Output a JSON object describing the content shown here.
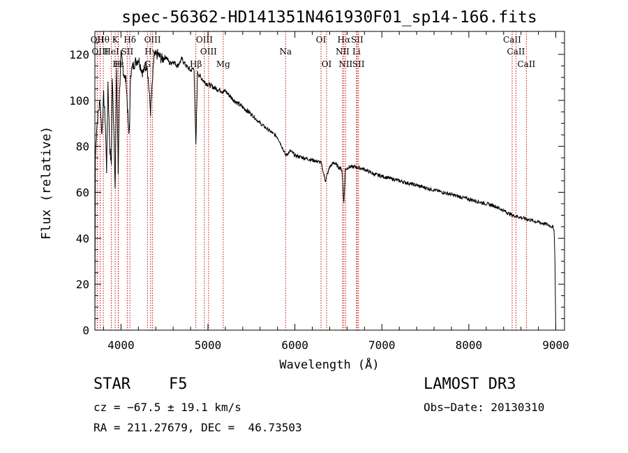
{
  "chart_data": {
    "type": "line",
    "title": "spec-56362-HD141351N461930F01_sp14-166.fits",
    "xlabel": "Wavelength (Å)",
    "ylabel": "Flux (relative)",
    "xlim": [
      3700,
      9100
    ],
    "ylim": [
      0,
      130
    ],
    "xticks": [
      4000,
      5000,
      6000,
      7000,
      8000,
      9000
    ],
    "yticks": [
      0,
      20,
      40,
      60,
      80,
      100,
      120
    ],
    "grid": false,
    "series": [
      {
        "name": "flux",
        "color": "#000000",
        "x": [
          3700,
          3705,
          3720,
          3740,
          3760,
          3780,
          3800,
          3820,
          3835,
          3850,
          3870,
          3889,
          3900,
          3920,
          3933,
          3950,
          3968,
          3980,
          4000,
          4030,
          4060,
          4090,
          4101,
          4110,
          4150,
          4200,
          4250,
          4300,
          4340,
          4380,
          4420,
          4470,
          4520,
          4560,
          4600,
          4650,
          4700,
          4750,
          4800,
          4840,
          4861,
          4880,
          4920,
          4960,
          5000,
          5050,
          5100,
          5167,
          5200,
          5250,
          5300,
          5400,
          5500,
          5600,
          5700,
          5800,
          5850,
          5893,
          5950,
          6000,
          6100,
          6200,
          6300,
          6350,
          6400,
          6450,
          6500,
          6540,
          6563,
          6580,
          6620,
          6700,
          6800,
          6900,
          7000,
          7100,
          7200,
          7300,
          7400,
          7500,
          7600,
          7700,
          7800,
          7900,
          8000,
          8100,
          8200,
          8300,
          8400,
          8500,
          8600,
          8700,
          8800,
          8900,
          8960,
          8980,
          8990,
          9000
        ],
        "y": [
          0,
          75,
          88,
          95,
          100,
          85,
          102,
          90,
          70,
          108,
          80,
          72,
          110,
          85,
          62,
          115,
          68,
          100,
          120,
          112,
          108,
          85,
          92,
          112,
          116,
          118,
          112,
          116,
          95,
          119,
          120,
          118,
          119,
          116,
          117,
          115,
          118,
          115,
          113,
          114,
          80,
          112,
          110,
          108,
          107,
          106,
          105,
          104,
          104,
          102,
          100,
          97,
          94,
          90,
          87,
          84,
          80,
          76,
          78,
          76,
          75,
          74,
          73,
          65,
          71,
          73,
          71,
          70,
          55,
          70,
          71,
          71,
          70,
          68,
          67,
          66,
          65,
          64,
          63,
          62,
          61,
          60,
          59,
          58,
          57,
          56,
          55,
          54,
          52,
          50,
          49,
          48,
          47,
          46,
          45,
          44,
          30,
          0
        ]
      }
    ],
    "line_markers": [
      {
        "name": "Hθ",
        "wavelength": 3797
      },
      {
        "name": "K",
        "wavelength": 3934
      },
      {
        "name": "Hδ",
        "wavelength": 4102
      },
      {
        "name": "OIII",
        "wavelength": 4363
      },
      {
        "name": "OIII",
        "wavelength": 4959
      },
      {
        "name": "OI",
        "wavelength": 6300
      },
      {
        "name": "Hα",
        "wavelength": 6563
      },
      {
        "name": "SII",
        "wavelength": 6716
      },
      {
        "name": "CaII",
        "wavelength": 8498
      },
      {
        "name": "OII",
        "wavelength": 3727
      },
      {
        "name": "HeI",
        "wavelength": 3889
      },
      {
        "name": "SII",
        "wavelength": 4072
      },
      {
        "name": "Hγ",
        "wavelength": 4341
      },
      {
        "name": "OIII",
        "wavelength": 5007
      },
      {
        "name": "Na",
        "wavelength": 5893
      },
      {
        "name": "NII",
        "wavelength": 6548
      },
      {
        "name": "Li",
        "wavelength": 6708
      },
      {
        "name": "CaII",
        "wavelength": 8542
      },
      {
        "name": "OIII",
        "wavelength": 3760
      },
      {
        "name": "Hε",
        "wavelength": 3970
      },
      {
        "name": "H",
        "wavelength": 3968
      },
      {
        "name": "G",
        "wavelength": 4304
      },
      {
        "name": "Hβ",
        "wavelength": 4861
      },
      {
        "name": "Mg",
        "wavelength": 5175
      },
      {
        "name": "OI",
        "wavelength": 6364
      },
      {
        "name": "NII",
        "wavelength": 6583
      },
      {
        "name": "SII",
        "wavelength": 6731
      },
      {
        "name": "CaII",
        "wavelength": 8662
      }
    ]
  },
  "info": {
    "object_type": "STAR",
    "spectral_class": "F5",
    "survey": "LAMOST DR3",
    "redshift": "cz = −67.5 ± 19.1 km/s",
    "obs_date": "Obs−Date: 20130310",
    "coordinates": "RA = 211.27679, DEC =  46.73503"
  }
}
